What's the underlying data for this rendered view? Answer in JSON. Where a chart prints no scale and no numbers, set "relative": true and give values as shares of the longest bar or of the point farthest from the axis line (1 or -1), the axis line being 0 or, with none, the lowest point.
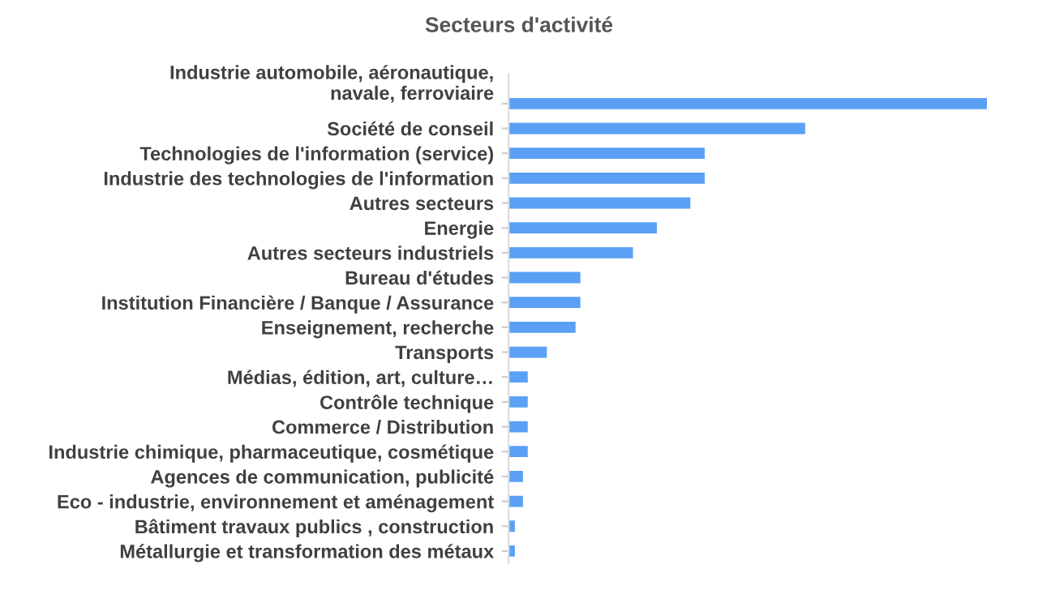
{
  "chart_data": {
    "type": "bar",
    "orientation": "horizontal",
    "relative": true,
    "title": "Secteurs d'activité",
    "categories": [
      "Industrie automobile, aéronautique, navale, ferroviaire",
      "Société de conseil",
      "Technologies de l'information (service)",
      "Industrie des technologies de l'information",
      "Autres secteurs",
      "Energie",
      "Autres secteurs industriels",
      "Bureau d'études",
      "Institution Financière / Banque / Assurance",
      "Enseignement, recherche",
      "Transports",
      "Médias, édition, art, culture…",
      "Contrôle technique",
      "Commerce / Distribution",
      "Industrie chimique, pharmaceutique, cosmétique",
      "Agences de communication, publicité",
      "Eco - industrie, environnement et aménagement",
      "Bâtiment travaux publics , construction",
      "Métallurgie et transformation des métaux"
    ],
    "values": [
      1,
      0.62,
      0.41,
      0.41,
      0.38,
      0.31,
      0.26,
      0.15,
      0.15,
      0.14,
      0.08,
      0.04,
      0.04,
      0.04,
      0.04,
      0.03,
      0.03,
      0.013,
      0.013
    ],
    "color": "#5aa0f5",
    "grid": false,
    "legend": false
  }
}
